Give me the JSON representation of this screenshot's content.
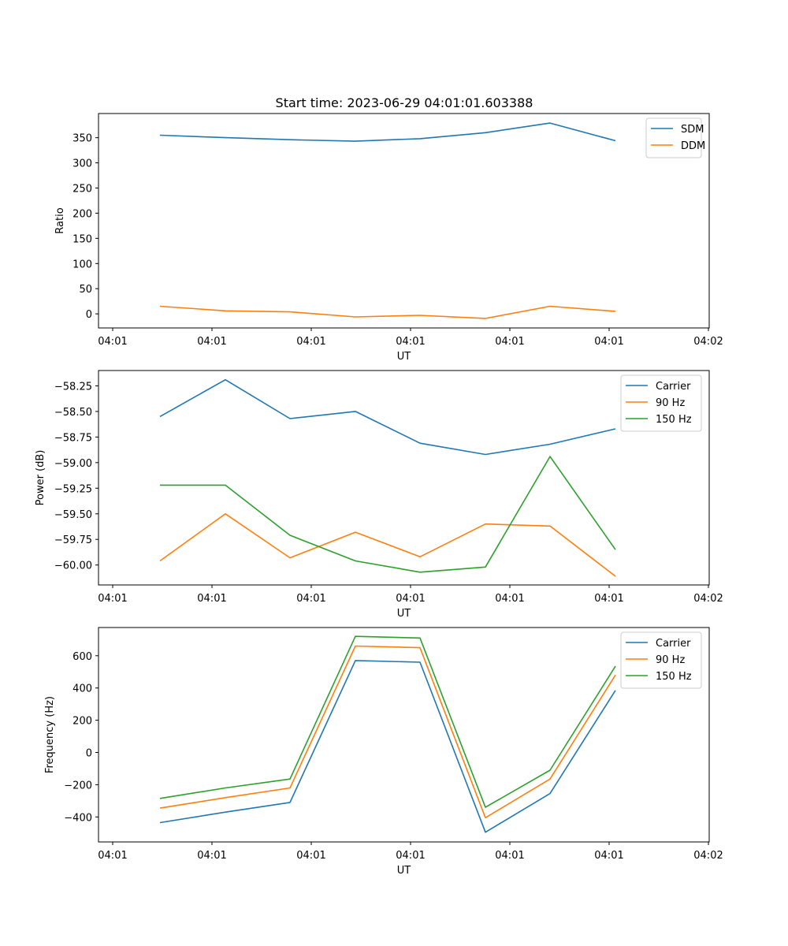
{
  "figure_title": "Start time: 2023-06-29 04:01:01.603388",
  "chart_data": [
    {
      "type": "line",
      "ylabel": "Ratio",
      "xlabel": "UT",
      "x_tick_labels": [
        "04:01",
        "04:01",
        "04:01",
        "04:01",
        "04:01",
        "04:01",
        "04:02"
      ],
      "y_ticks": [
        0,
        50,
        100,
        150,
        200,
        250,
        300,
        350
      ],
      "y_tick_labels": [
        "0",
        "50",
        "100",
        "150",
        "200",
        "250",
        "300",
        "350"
      ],
      "ylim": [
        -28,
        398
      ],
      "legend_position": "top-right",
      "series": [
        {
          "name": "SDM",
          "color": "#1f77b4",
          "values": [
            355,
            350,
            346,
            343,
            348,
            360,
            379,
            344
          ]
        },
        {
          "name": "DDM",
          "color": "#ff7f0e",
          "values": [
            15,
            6,
            4,
            -6,
            -3,
            -9,
            15,
            5
          ]
        }
      ]
    },
    {
      "type": "line",
      "ylabel": "Power (dB)",
      "xlabel": "UT",
      "x_tick_labels": [
        "04:01",
        "04:01",
        "04:01",
        "04:01",
        "04:01",
        "04:01",
        "04:02"
      ],
      "y_ticks": [
        -60.0,
        -59.75,
        -59.5,
        -59.25,
        -59.0,
        -58.75,
        -58.5,
        -58.25
      ],
      "y_tick_labels": [
        "−60.00",
        "−59.75",
        "−59.50",
        "−59.25",
        "−59.00",
        "−58.75",
        "−58.50",
        "−58.25"
      ],
      "ylim": [
        -60.195,
        -58.1
      ],
      "legend_position": "top-right",
      "series": [
        {
          "name": "Carrier",
          "color": "#1f77b4",
          "values": [
            -58.55,
            -58.19,
            -58.57,
            -58.5,
            -58.81,
            -58.92,
            -58.82,
            -58.67
          ]
        },
        {
          "name": "90 Hz",
          "color": "#ff7f0e",
          "values": [
            -59.96,
            -59.5,
            -59.93,
            -59.68,
            -59.92,
            -59.6,
            -59.62,
            -60.11
          ]
        },
        {
          "name": "150 Hz",
          "color": "#2ca02c",
          "values": [
            -59.22,
            -59.22,
            -59.71,
            -59.96,
            -60.07,
            -60.02,
            -58.94,
            -59.85
          ]
        }
      ]
    },
    {
      "type": "line",
      "ylabel": "Frequency (Hz)",
      "xlabel": "UT",
      "x_tick_labels": [
        "04:01",
        "04:01",
        "04:01",
        "04:01",
        "04:01",
        "04:01",
        "04:02"
      ],
      "y_ticks": [
        -400,
        -200,
        0,
        200,
        400,
        600
      ],
      "y_tick_labels": [
        "−400",
        "−200",
        "0",
        "200",
        "400",
        "600"
      ],
      "ylim": [
        -555,
        775
      ],
      "legend_position": "top-right",
      "series": [
        {
          "name": "Carrier",
          "color": "#1f77b4",
          "values": [
            -435,
            -370,
            -310,
            570,
            560,
            -495,
            -255,
            385
          ]
        },
        {
          "name": "90 Hz",
          "color": "#ff7f0e",
          "values": [
            -345,
            -280,
            -220,
            660,
            650,
            -405,
            -165,
            480
          ]
        },
        {
          "name": "150 Hz",
          "color": "#2ca02c",
          "values": [
            -285,
            -220,
            -165,
            720,
            710,
            -340,
            -110,
            535
          ]
        }
      ]
    }
  ]
}
